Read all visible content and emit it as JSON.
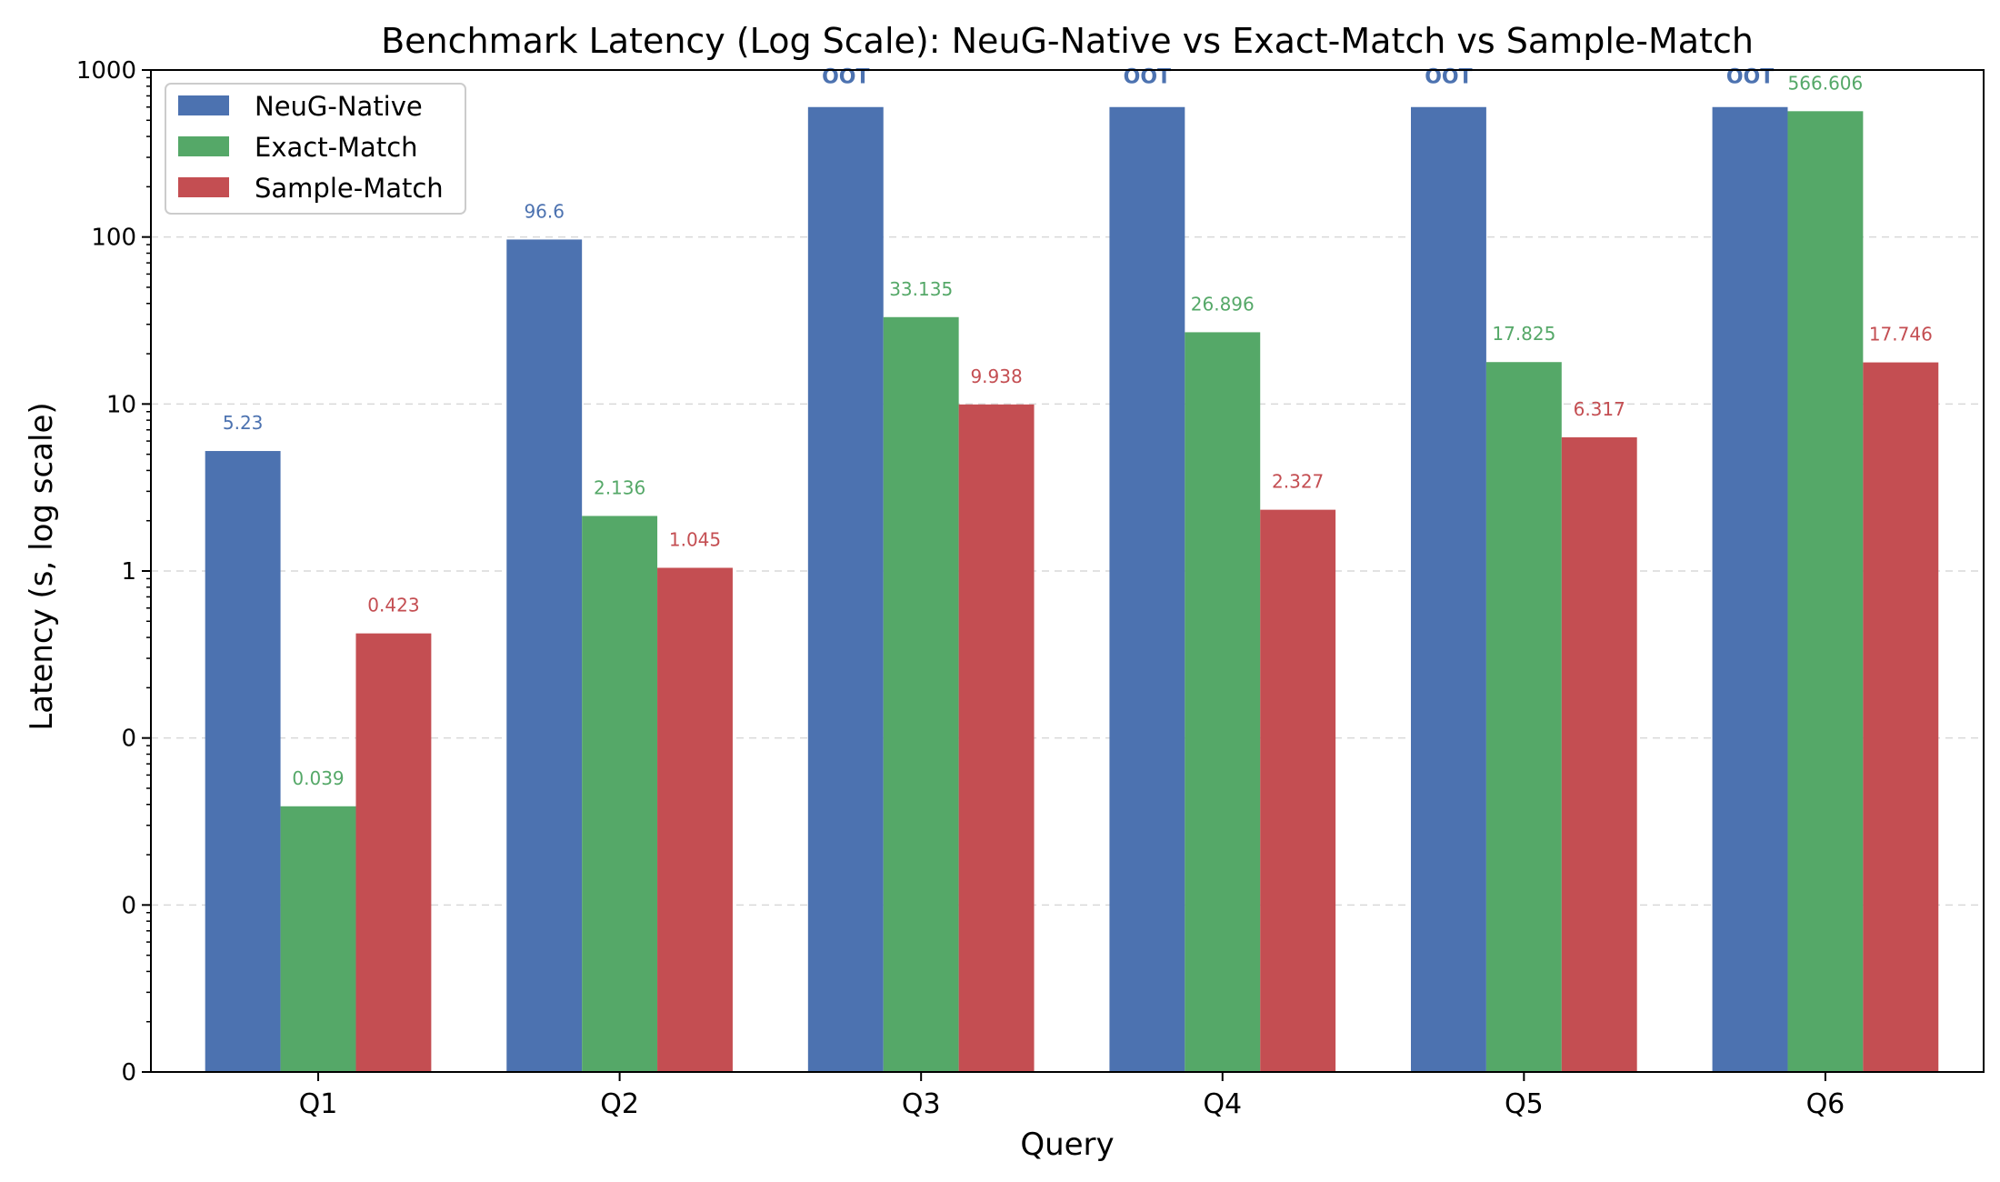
{
  "chart_data": {
    "type": "bar",
    "title": "Benchmark Latency (Log Scale): NeuG-Native vs Exact-Match vs Sample-Match",
    "xlabel": "Query",
    "ylabel": "Latency (s, log scale)",
    "scale": "log",
    "ylim": [
      0.001,
      1000
    ],
    "yticks": [
      {
        "value": 0.001,
        "label": "0"
      },
      {
        "value": 0.01,
        "label": "0"
      },
      {
        "value": 0.1,
        "label": "0"
      },
      {
        "value": 1,
        "label": "1"
      },
      {
        "value": 10,
        "label": "10"
      },
      {
        "value": 100,
        "label": "100"
      },
      {
        "value": 1000,
        "label": "1000"
      }
    ],
    "grid": true,
    "legend_position": "top-left",
    "categories": [
      "Q1",
      "Q2",
      "Q3",
      "Q4",
      "Q5",
      "Q6"
    ],
    "series": [
      {
        "name": "NeuG-Native",
        "color": "#4c72b0",
        "values": [
          5.23,
          96.6,
          600,
          600,
          600,
          600
        ],
        "labels": [
          "5.23",
          "96.6",
          "OOT",
          "OOT",
          "OOT",
          "OOT"
        ]
      },
      {
        "name": "Exact-Match",
        "color": "#55a868",
        "values": [
          0.039,
          2.136,
          33.135,
          26.896,
          17.825,
          566.606
        ],
        "labels": [
          "0.039",
          "2.136",
          "33.135",
          "26.896",
          "17.825",
          "566.606"
        ]
      },
      {
        "name": "Sample-Match",
        "color": "#c44e52",
        "values": [
          0.423,
          1.045,
          9.938,
          2.327,
          6.317,
          17.746
        ],
        "labels": [
          "0.423",
          "1.045",
          "9.938",
          "2.327",
          "6.317",
          "17.746"
        ]
      }
    ]
  }
}
